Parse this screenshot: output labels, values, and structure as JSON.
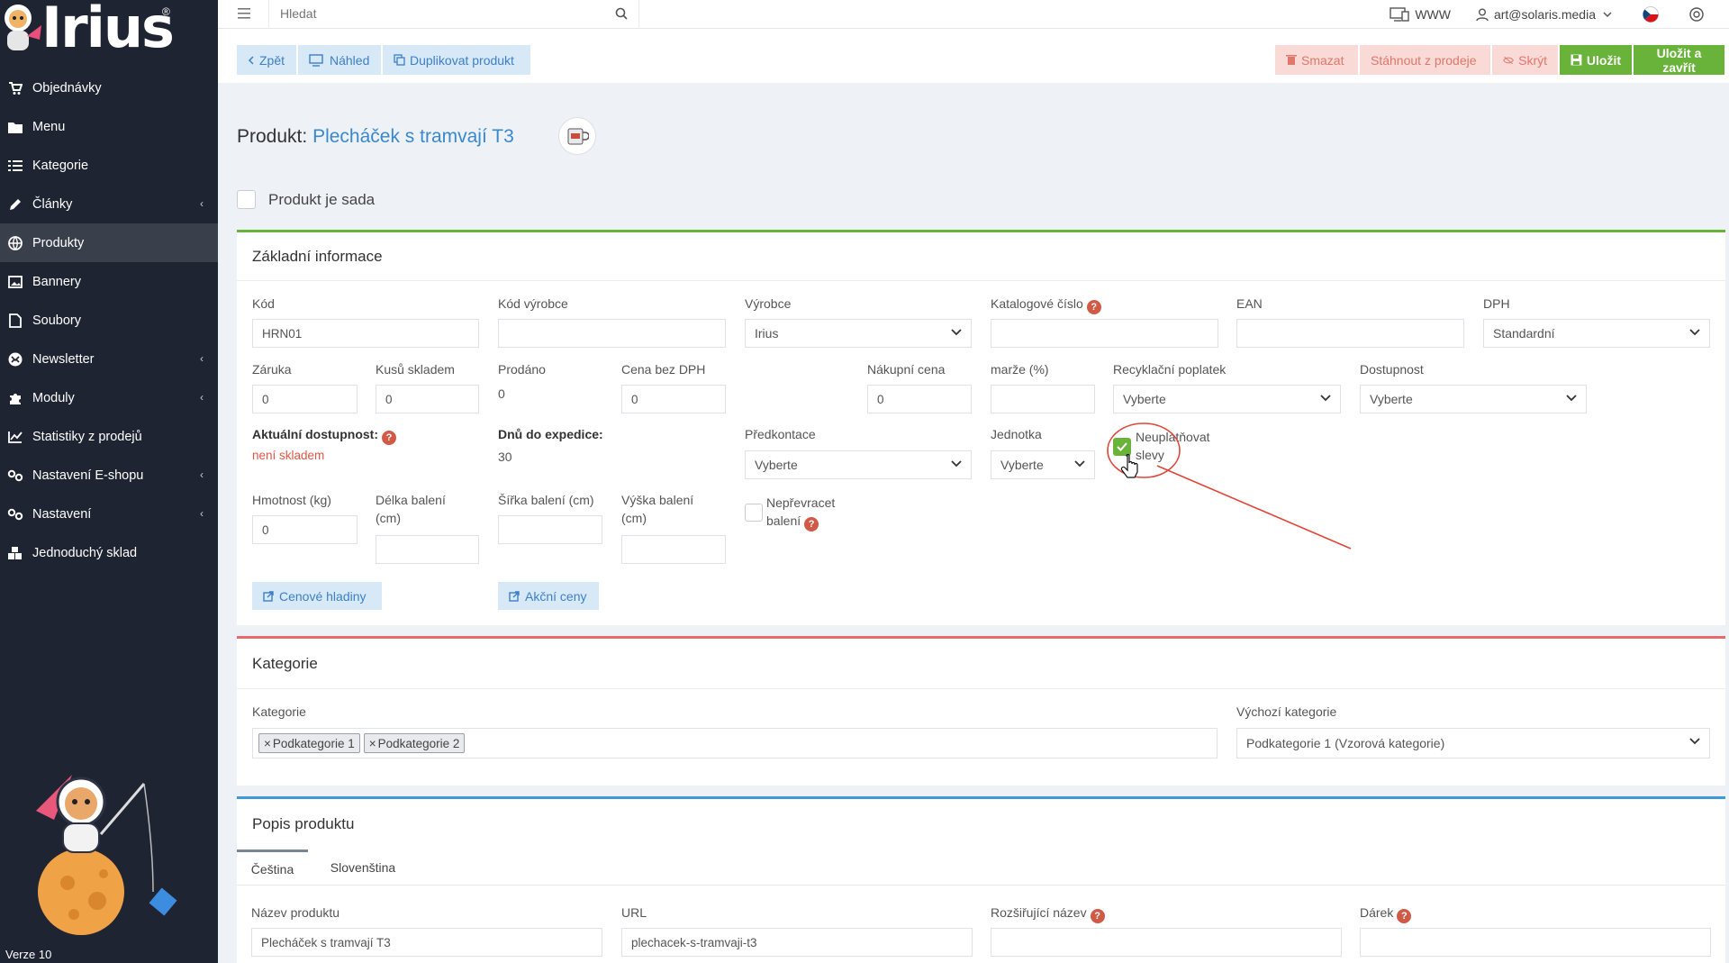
{
  "app": {
    "logo": "Irius",
    "logo_reg": "®",
    "version": "Verze 10"
  },
  "sidebar": {
    "items": [
      {
        "label": "Objednávky",
        "icon": "cart-icon",
        "chevron": false
      },
      {
        "label": "Menu",
        "icon": "folder-icon",
        "chevron": false
      },
      {
        "label": "Kategorie",
        "icon": "list-icon",
        "chevron": false
      },
      {
        "label": "Články",
        "icon": "pencil-icon",
        "chevron": true
      },
      {
        "label": "Produkty",
        "icon": "globe-icon",
        "chevron": false,
        "active": true
      },
      {
        "label": "Bannery",
        "icon": "image-icon",
        "chevron": false
      },
      {
        "label": "Soubory",
        "icon": "file-icon",
        "chevron": false
      },
      {
        "label": "Newsletter",
        "icon": "mail-icon",
        "chevron": true
      },
      {
        "label": "Moduly",
        "icon": "puzzle-icon",
        "chevron": true
      },
      {
        "label": "Statistiky z prodejů",
        "icon": "chart-icon",
        "chevron": false
      },
      {
        "label": "Nastavení E-shopu",
        "icon": "cogs-icon",
        "chevron": true
      },
      {
        "label": "Nastavení",
        "icon": "cogs-icon",
        "chevron": true
      },
      {
        "label": "Jednoduchý sklad",
        "icon": "boxes-icon",
        "chevron": false
      }
    ]
  },
  "topbar": {
    "search_placeholder": "Hledat",
    "www_label": "WWW",
    "user_email": "art@solaris.media"
  },
  "actions": {
    "back": "Zpět",
    "preview": "Náhled",
    "duplicate": "Duplikovat produkt",
    "delete": "Smazat",
    "withdraw": "Stáhnout z prodeje",
    "hide": "Skrýt",
    "save": "Uložit",
    "save_close": "Uložit a zavřít"
  },
  "page": {
    "title_prefix": "Produkt:",
    "product_name": "Plecháček s tramvají T3",
    "set_label": "Produkt je sada"
  },
  "basic": {
    "heading": "Základní informace",
    "kod_label": "Kód",
    "kod_value": "HRN01",
    "kod_vyrobce_label": "Kód výrobce",
    "vyrobce_label": "Výrobce",
    "vyrobce_value": "Irius",
    "katalog_label": "Katalogové číslo",
    "ean_label": "EAN",
    "dph_label": "DPH",
    "dph_value": "Standardní",
    "zaruka_label": "Záruka",
    "zaruka_value": "0",
    "kusu_label": "Kusů skladem",
    "kusu_value": "0",
    "prodano_label": "Prodáno",
    "prodano_value": "0",
    "cena_label": "Cena bez DPH",
    "cena_value": "0",
    "nakupni_label": "Nákupní cena",
    "nakupni_value": "0",
    "marze_label": "marže (%)",
    "recykl_label": "Recyklační poplatek",
    "recykl_value": "Vyberte",
    "dostupnost_label": "Dostupnost",
    "dostupnost_value": "Vyberte",
    "aktualni_label": "Aktuální dostupnost:",
    "aktualni_value": "není skladem",
    "dnu_label": "Dnů do expedice:",
    "dnu_value": "30",
    "predkontace_label": "Předkontace",
    "predkontace_value": "Vyberte",
    "jednotka_label": "Jednotka",
    "jednotka_value": "Vyberte",
    "neuplatnovat_line1": "Neuplatňovat",
    "neuplatnovat_line2": "slevy",
    "hmotnost_label": "Hmotnost (kg)",
    "hmotnost_value": "0",
    "delka_line1": "Délka balení",
    "delka_line2": "(cm)",
    "sirka_label": "Šířka balení (cm)",
    "vyska_line1": "Výška balení",
    "vyska_line2": "(cm)",
    "neprevracet_line1": "Nepřevracet",
    "neprevracet_line2": "balení",
    "cenove_btn": "Cenové hladiny",
    "akcni_btn": "Akční ceny"
  },
  "categories": {
    "heading": "Kategorie",
    "label": "Kategorie",
    "tags": [
      "Podkategorie 1",
      "Podkategorie 2"
    ],
    "default_label": "Výchozí kategorie",
    "default_value": "Podkategorie 1 (Vzorová kategorie)"
  },
  "description": {
    "heading": "Popis produktu",
    "tabs": [
      "Čeština",
      "Slovenština"
    ],
    "name_label": "Název produktu",
    "name_value": "Plecháček s tramvají T3",
    "url_label": "URL",
    "url_value": "plechacek-s-tramvaji-t3",
    "ext_label": "Rozšiřující název",
    "gift_label": "Dárek"
  },
  "colors": {
    "accent_blue": "#3a88d0",
    "green": "#69b33a",
    "red": "#e05546",
    "sidebar_bg": "#1f2433"
  }
}
